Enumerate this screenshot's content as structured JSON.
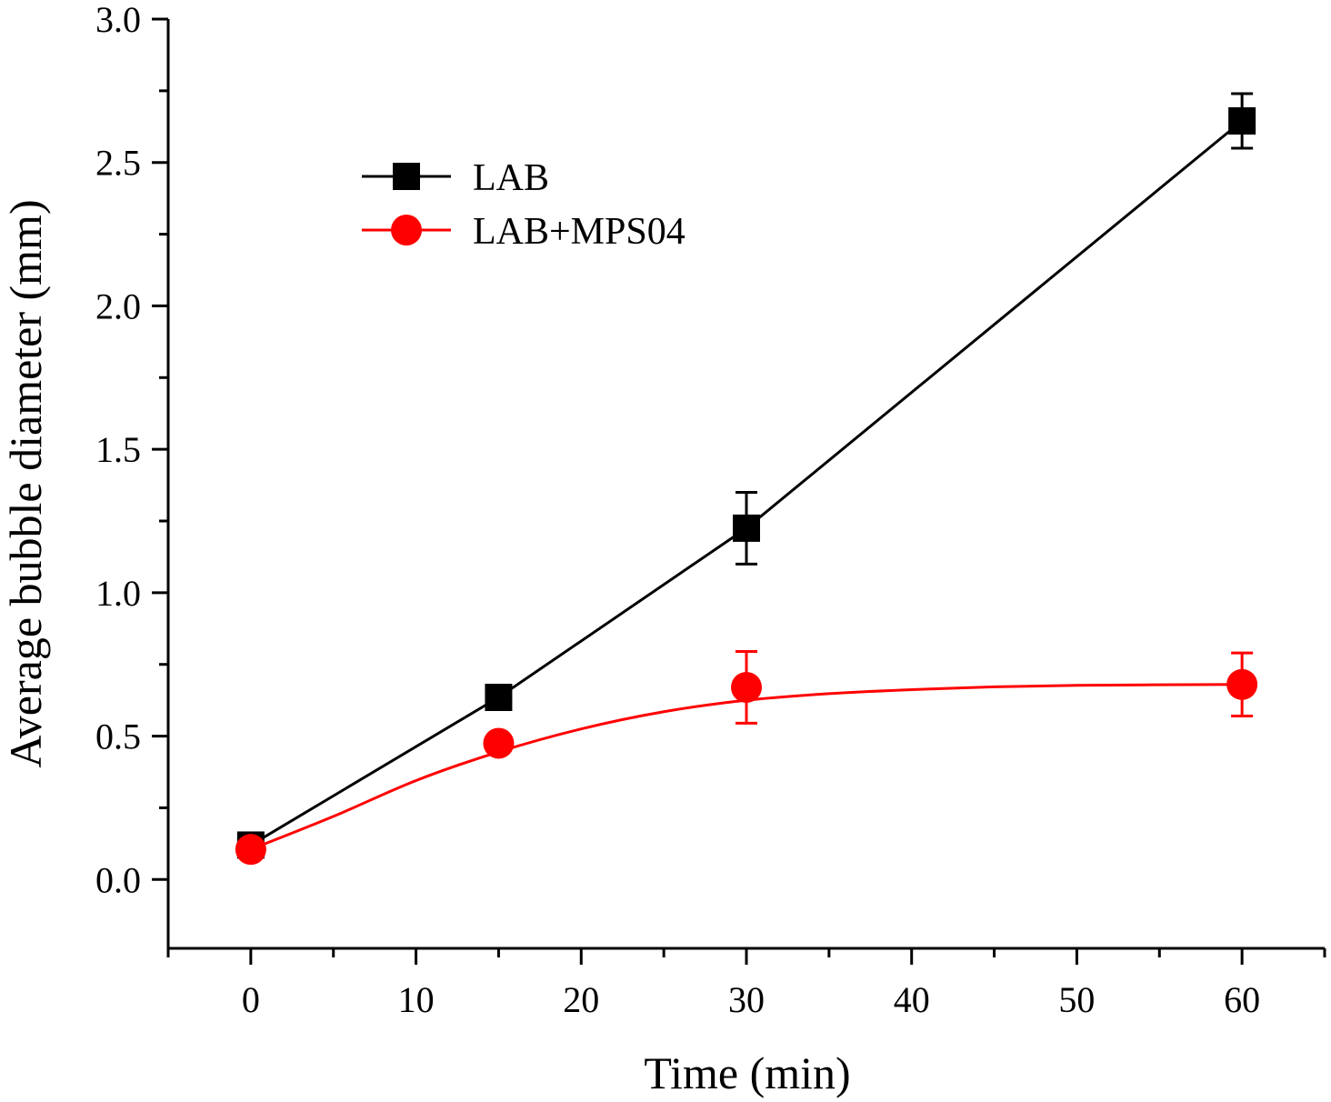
{
  "chart_data": {
    "type": "line",
    "title": "",
    "xlabel": "Time (min)",
    "ylabel": "Average bubble diameter (mm)",
    "xlim": [
      -5,
      65
    ],
    "ylim": [
      -0.24,
      3.0
    ],
    "x_ticks": [
      0,
      10,
      20,
      30,
      40,
      50,
      60
    ],
    "x_tick_labels": [
      "0",
      "10",
      "20",
      "30",
      "40",
      "50",
      "60"
    ],
    "y_ticks": [
      0.0,
      0.5,
      1.0,
      1.5,
      2.0,
      2.5,
      3.0
    ],
    "y_tick_labels": [
      "0.0",
      "0.5",
      "1.0",
      "1.5",
      "2.0",
      "2.5",
      "3.0"
    ],
    "grid": false,
    "legend_position": "top-left",
    "series": [
      {
        "name": "LAB",
        "marker": "square",
        "color": "#000000",
        "line": "straight",
        "x": [
          0,
          15,
          30,
          60
        ],
        "values": [
          0.12,
          0.635,
          1.225,
          2.645
        ],
        "errors": [
          0.0,
          0.0,
          0.125,
          0.095
        ]
      },
      {
        "name": "LAB+MPS04",
        "marker": "circle",
        "color": "#ff0000",
        "line": "smooth",
        "x": [
          0,
          15,
          30,
          60
        ],
        "values": [
          0.105,
          0.475,
          0.67,
          0.68
        ],
        "errors": [
          0.0,
          0.0,
          0.125,
          0.11
        ],
        "fit_curve": {
          "x": [
            0,
            5,
            10,
            15,
            20,
            25,
            30,
            35,
            40,
            45,
            50,
            55,
            60
          ],
          "y": [
            0.105,
            0.22,
            0.345,
            0.445,
            0.525,
            0.585,
            0.625,
            0.648,
            0.662,
            0.672,
            0.677,
            0.679,
            0.68
          ]
        }
      }
    ]
  }
}
